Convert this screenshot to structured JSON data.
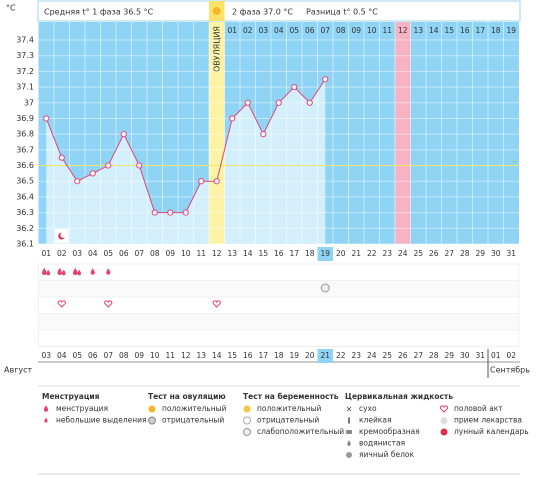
{
  "header": {
    "unit": "°C",
    "phase1": "Средняя t° 1 фаза 36.5 °C",
    "phase2": "2 фаза 37.0 °C",
    "diff": "Разница t° 0.5 °C"
  },
  "chart_data": {
    "type": "line",
    "color": "#e0457b",
    "ylim": [
      36.1,
      37.4
    ],
    "yticks": [
      36.1,
      36.2,
      36.3,
      36.4,
      36.5,
      36.6,
      36.7,
      36.8,
      36.9,
      {
        "value": 37,
        "label": "37"
      },
      37.1,
      37.2,
      37.3,
      37.4
    ],
    "categories": [
      "01",
      "02",
      "03",
      "04",
      "05",
      "06",
      "07",
      "08",
      "09",
      "10",
      "11",
      "12",
      "13",
      "14",
      "15",
      "16",
      "17",
      "18",
      "19",
      "20",
      "21",
      "22",
      "23",
      "24",
      "25",
      "26",
      "27",
      "28",
      "29",
      "30",
      "31"
    ],
    "values": [
      36.9,
      36.65,
      36.5,
      36.55,
      36.6,
      36.8,
      36.6,
      36.3,
      36.3,
      36.3,
      36.5,
      36.5,
      36.9,
      37.0,
      36.8,
      37.0,
      37.1,
      37.0,
      37.15,
      null,
      null,
      null,
      null,
      null,
      null,
      null,
      null,
      null,
      null,
      null,
      null
    ],
    "phase2_days": [
      null,
      null,
      null,
      null,
      null,
      null,
      null,
      null,
      null,
      null,
      null,
      null,
      "01",
      "02",
      "03",
      "04",
      "05",
      "06",
      "07",
      "08",
      "09",
      "10",
      "11",
      "12",
      "13",
      "14",
      "15",
      "16",
      "17",
      "18",
      "19"
    ],
    "coverline": 36.6,
    "ovulation_day": 11,
    "ovulation_label": "ОВУЛЯЦИЯ",
    "today": 18,
    "period_expected": 23,
    "dates": [
      "03",
      "04",
      "05",
      "06",
      "07",
      "08",
      "09",
      "10",
      "11",
      "12",
      "13",
      "14",
      "15",
      "16",
      "17",
      "18",
      "19",
      "20",
      "21",
      "22",
      "23",
      "24",
      "25",
      "26",
      "27",
      "28",
      "29",
      "30",
      "31",
      "01",
      "02"
    ],
    "weekend": [
      false,
      false,
      false,
      true,
      true,
      false,
      false,
      false,
      false,
      false,
      true,
      true,
      false,
      false,
      false,
      false,
      false,
      true,
      true,
      false,
      false,
      false,
      false,
      false,
      true,
      true,
      false,
      false,
      false,
      false,
      false
    ],
    "months": [
      "Август",
      "Сентябрь"
    ],
    "menstruation": [
      0,
      1,
      2
    ],
    "spotting": [
      3,
      4
    ],
    "pregnancy_test": [
      18
    ],
    "intercourse": [
      1,
      4,
      11
    ],
    "lunar": [
      1
    ]
  },
  "legend": [
    {
      "title": "Менструация",
      "items": [
        "менструация",
        "небольшие выделения"
      ]
    },
    {
      "title": "Тест на овуляцию",
      "items": [
        "положительный",
        "отрицательный"
      ]
    },
    {
      "title": "Тест на беременность",
      "items": [
        "положительный",
        "отрицательный",
        "слабоположительный"
      ]
    },
    {
      "title": "Цервикальная жидкость",
      "items": [
        "сухо",
        "клейкая",
        "кремообразная",
        "водянистая",
        "яичный белок"
      ]
    },
    {
      "title": null,
      "items": [
        "половой акт",
        "прием лекарства",
        "лунный календарь"
      ]
    }
  ]
}
